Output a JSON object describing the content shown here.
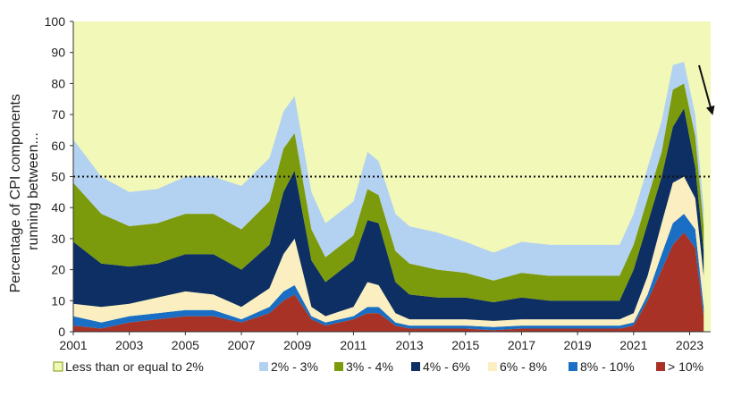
{
  "chart_data": {
    "type": "area",
    "stacked": true,
    "title": "",
    "ylabel_lines": [
      "Percentage of CPI components",
      "running between..."
    ],
    "xlabel": "",
    "ylim": [
      0,
      100
    ],
    "xlim": [
      2001,
      2023.75
    ],
    "y_ticks": [
      "0",
      "10",
      "20",
      "30",
      "40",
      "50",
      "60",
      "70",
      "80",
      "90",
      "100"
    ],
    "x_ticks": [
      "2001",
      "2003",
      "2005",
      "2007",
      "2009",
      "2011",
      "2013",
      "2015",
      "2017",
      "2019",
      "2021",
      "2023"
    ],
    "reference_line": {
      "y": 50,
      "style": "dotted"
    },
    "annotation": "arrow-down-right",
    "legend_position": "bottom",
    "x": [
      2001,
      2002,
      2003,
      2004,
      2005,
      2006,
      2007,
      2008,
      2008.5,
      2008.9,
      2009.5,
      2010,
      2011,
      2011.5,
      2011.9,
      2012.5,
      2013,
      2014,
      2015,
      2016,
      2017,
      2018,
      2019,
      2020,
      2020.5,
      2021,
      2021.5,
      2022,
      2022.4,
      2022.8,
      2023.2,
      2023.5
    ],
    "series": [
      {
        "name": "> 10%",
        "color": "#a93226",
        "values": [
          2,
          1,
          3,
          4,
          5,
          5,
          3,
          6,
          10,
          12,
          4,
          2,
          4,
          6,
          6,
          2,
          1,
          1,
          1,
          0.5,
          1,
          1,
          1,
          1,
          1,
          2,
          10,
          20,
          28,
          32,
          27,
          5
        ]
      },
      {
        "name": "8% - 10%",
        "color": "#1a6fc4",
        "values": [
          3,
          2,
          2,
          2,
          2,
          2,
          1,
          2,
          3,
          3,
          1,
          1,
          1,
          2,
          2,
          1,
          1,
          1,
          1,
          1,
          1,
          1,
          1,
          1,
          1,
          1,
          2,
          5,
          7,
          6,
          6,
          3
        ]
      },
      {
        "name": "6% - 8%",
        "color": "#fbefc2",
        "values": [
          4,
          5,
          4,
          5,
          6,
          5,
          4,
          6,
          12,
          15,
          3,
          2,
          3,
          8,
          7,
          3,
          2,
          2,
          2,
          2,
          2,
          2,
          2,
          2,
          2,
          3,
          6,
          10,
          13,
          12,
          10,
          10
        ]
      },
      {
        "name": "4% - 6%",
        "color": "#0d2f63",
        "values": [
          20,
          14,
          12,
          11,
          12,
          13,
          12,
          14,
          20,
          22,
          15,
          11,
          15,
          20,
          20,
          10,
          8,
          7,
          7,
          6,
          7,
          6,
          6,
          6,
          6,
          14,
          17,
          15,
          18,
          22,
          10,
          8
        ]
      },
      {
        "name": "3% - 4%",
        "color": "#7b9a0c",
        "values": [
          19,
          16,
          13,
          13,
          13,
          13,
          13,
          14,
          14,
          12,
          10,
          8,
          8,
          10,
          9,
          10,
          10,
          9,
          8,
          7,
          8,
          8,
          8,
          8,
          8,
          8,
          8,
          8,
          12,
          8,
          10,
          8
        ]
      },
      {
        "name": "2% - 3%",
        "color": "#b3d1f0",
        "values": [
          14,
          12,
          11,
          11,
          12,
          12,
          14,
          14,
          12,
          12,
          12,
          11,
          11,
          12,
          11,
          12,
          12,
          12,
          10,
          9,
          10,
          10,
          10,
          10,
          10,
          10,
          10,
          10,
          8,
          7,
          7,
          6
        ]
      },
      {
        "name": "Less than or equal to 2%",
        "color": "#f1f8b8",
        "values": [
          38,
          50,
          55,
          54,
          50,
          50,
          53,
          44,
          29,
          24,
          55,
          65,
          58,
          42,
          45,
          62,
          66,
          68,
          71,
          74.5,
          71,
          72,
          72,
          72,
          72,
          62,
          47,
          32,
          14,
          13,
          30,
          60
        ]
      }
    ]
  }
}
